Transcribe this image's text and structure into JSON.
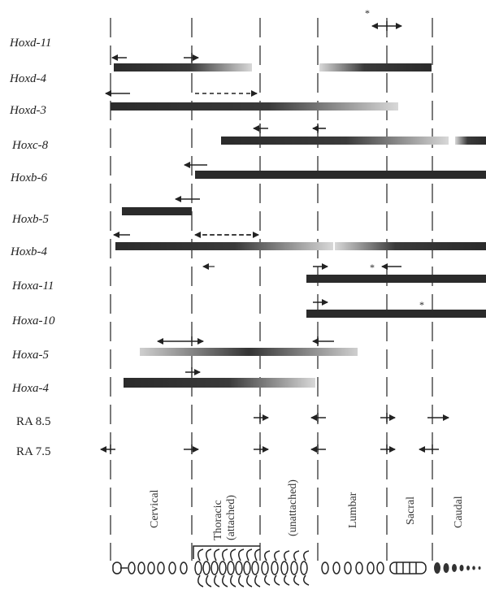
{
  "genes": [
    {
      "label": "Hoxd-11"
    },
    {
      "label": "Hoxd-4"
    },
    {
      "label": "Hoxd-3"
    },
    {
      "label": "Hoxc-8"
    },
    {
      "label": "Hoxb-6"
    },
    {
      "label": "Hoxb-5"
    },
    {
      "label": "Hoxb-4"
    },
    {
      "label": "Hoxa-11"
    },
    {
      "label": "Hoxa-10"
    },
    {
      "label": "Hoxa-5"
    },
    {
      "label": "Hoxa-4"
    }
  ],
  "treatments": [
    {
      "label": "RA 8.5"
    },
    {
      "label": "RA 7.5"
    }
  ],
  "regions": [
    {
      "label": "Cervical"
    },
    {
      "label": "Thoracic (attached)"
    },
    {
      "label": "(unattached)"
    },
    {
      "label": "Lumbar"
    },
    {
      "label": "Sacral"
    },
    {
      "label": "Caudal"
    }
  ],
  "annotations": {
    "asterisk": "*"
  },
  "colors": {
    "bar": "#2b2b2b",
    "dash": "#333333",
    "text": "#222222"
  }
}
